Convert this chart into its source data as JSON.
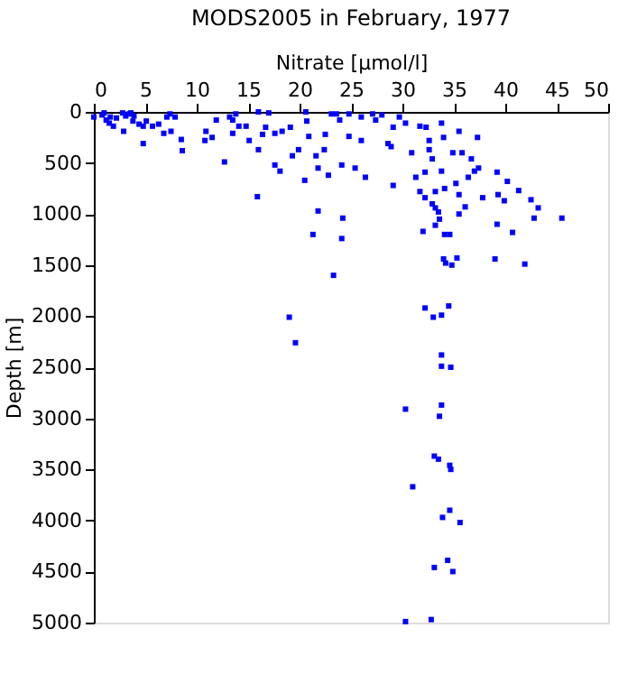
{
  "chart_data": {
    "type": "scatter",
    "title": "MODS2005 in February, 1977",
    "xlabel": "Nitrate [µmol/l]",
    "ylabel": "Depth [m]",
    "xlim": [
      0,
      50
    ],
    "xticks": [
      0,
      5,
      10,
      15,
      20,
      25,
      30,
      35,
      40,
      45,
      50
    ],
    "ylim": [
      5000,
      0
    ],
    "yticks": [
      0,
      500,
      {
        "value": 1000,
        "label": "1000"
      },
      {
        "value": 1500,
        "label": "1500"
      },
      {
        "value": 2000,
        "label": "2000"
      },
      {
        "value": 2500,
        "label": "2500"
      },
      {
        "value": 3000,
        "label": "3000"
      },
      {
        "value": 3500,
        "label": "3500"
      },
      {
        "value": 4000,
        "label": "4000"
      },
      {
        "value": 4500,
        "label": "4500"
      },
      {
        "value": 5000,
        "label": "5000"
      }
    ],
    "grid": false,
    "marker": "square",
    "series": [
      {
        "color": "#0000ff",
        "x": [
          0.0,
          0.8,
          1.0,
          1.6,
          1.2,
          1.5,
          1.9,
          2.2,
          2.8,
          3.1,
          3.4,
          3.6,
          3.9,
          3.8,
          4.4,
          4.8,
          5.1,
          5.7,
          2.9,
          4.8,
          6.3,
          7.1,
          7.4,
          7.9,
          6.8,
          7.5,
          8.5,
          8.6,
          10.9,
          10.8,
          11.5,
          11.9,
          12.7,
          13.2,
          13.5,
          13.8,
          13.5,
          14.1,
          14.8,
          15.1,
          16.0,
          16.0,
          16.7,
          16.4,
          17.0,
          17.6,
          18.3,
          19.1,
          19.3,
          19.9,
          18.1,
          17.6,
          15.9,
          20.6,
          20.7,
          20.5,
          20.9,
          21.6,
          21.8,
          22.4,
          22.5,
          22.8,
          23.1,
          23.6,
          23.9,
          24.1,
          24.8,
          25.4,
          24.8,
          26.0,
          27.1,
          28.0,
          26.0,
          26.4,
          27.4,
          28.6,
          28.9,
          29.7,
          29.1,
          30.3,
          29.1,
          30.9,
          31.3,
          31.7,
          32.3,
          32.6,
          32.6,
          32.9,
          33.2,
          32.2,
          31.7,
          32.2,
          32.9,
          33.2,
          33.5,
          33.6,
          33.8,
          34.0,
          33.8,
          34.1,
          34.9,
          35.2,
          35.5,
          35.8,
          35.5,
          35.5,
          36.1,
          36.4,
          36.7,
          37.0,
          37.3,
          37.4,
          37.8,
          39.2,
          39.3,
          39.2,
          40.2,
          39.9,
          41.3,
          42.5,
          42.8,
          43.2,
          40.7,
          45.5,
          21.3,
          24.1,
          24.2,
          21.8,
          34.6,
          34.1,
          33.2,
          32.0,
          34.0,
          34.2,
          34.8,
          35.3,
          39.0,
          41.9,
          23.3,
          19.0,
          19.6,
          32.2,
          33.0,
          33.8,
          34.5,
          33.8,
          33.8,
          34.7,
          33.8,
          30.3,
          33.6,
          33.1,
          33.5,
          34.6,
          34.7,
          31.0,
          34.6,
          33.9,
          35.6,
          34.4,
          34.9,
          33.1,
          32.8,
          30.3
        ],
        "values": [
          50,
          30,
          10,
          50,
          80,
          110,
          140,
          60,
          10,
          40,
          20,
          10,
          40,
          90,
          120,
          140,
          90,
          140,
          190,
          310,
          120,
          50,
          20,
          50,
          210,
          190,
          270,
          380,
          190,
          280,
          250,
          80,
          490,
          50,
          80,
          20,
          210,
          140,
          140,
          280,
          370,
          0,
          150,
          220,
          10,
          210,
          190,
          150,
          430,
          370,
          580,
          520,
          830,
          0,
          90,
          670,
          240,
          430,
          550,
          370,
          220,
          620,
          20,
          20,
          80,
          520,
          20,
          550,
          240,
          50,
          20,
          30,
          280,
          640,
          80,
          310,
          340,
          50,
          150,
          110,
          720,
          400,
          640,
          140,
          150,
          280,
          370,
          460,
          780,
          590,
          780,
          840,
          900,
          940,
          980,
          1050,
          110,
          250,
          580,
          750,
          400,
          700,
          190,
          400,
          810,
          1000,
          930,
          640,
          460,
          580,
          250,
          550,
          840,
          590,
          810,
          1100,
          680,
          870,
          770,
          860,
          1040,
          940,
          1180,
          1040,
          1200,
          1240,
          1040,
          970,
          1200,
          1200,
          1110,
          1170,
          1440,
          1480,
          1500,
          1430,
          1440,
          1490,
          1600,
          2010,
          2260,
          1920,
          2010,
          1990,
          1900,
          2380,
          2490,
          2500,
          2870,
          2910,
          2980,
          3370,
          3400,
          3460,
          3500,
          3670,
          3900,
          3970,
          4020,
          4390,
          4500,
          4460,
          4970,
          4990
        ]
      }
    ]
  }
}
